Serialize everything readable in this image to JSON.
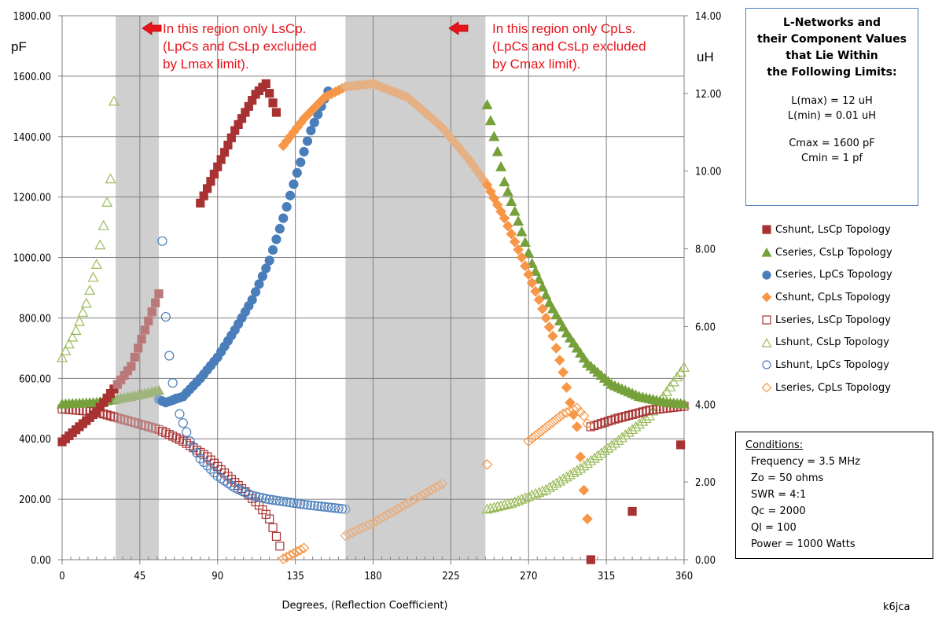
{
  "chart_data": {
    "type": "scatter",
    "title": "",
    "xlabel": "Degrees, (Reflection Coefficient)",
    "ylabel": "pF",
    "y2label": "uH",
    "xlim": [
      0,
      360
    ],
    "ylim": [
      0,
      1800
    ],
    "y2lim": [
      0,
      14
    ],
    "grid": true,
    "x_ticks": [
      0,
      45,
      90,
      135,
      180,
      225,
      270,
      315,
      360
    ],
    "y_ticks": [
      "0.00",
      "200.00",
      "400.00",
      "600.00",
      "800.00",
      "1000.00",
      "1200.00",
      "1400.00",
      "1600.00",
      "1800.00"
    ],
    "y2_ticks": [
      "0.00",
      "2.00",
      "4.00",
      "6.00",
      "8.00",
      "10.00",
      "12.00",
      "14.00"
    ],
    "shaded_regions": [
      {
        "x_from": 31,
        "x_to": 56,
        "label": "only LsCp"
      },
      {
        "x_from": 164,
        "x_to": 245,
        "label": "only CpLs"
      }
    ],
    "annotations": [
      {
        "id": "a1",
        "lines": [
          "In this region only LsCp.",
          "(LpCs and CsLp excluded",
          "by Lmax limit)."
        ]
      },
      {
        "id": "a2",
        "lines": [
          "In this region only CpLs.",
          "(LpCs and CsLp excluded",
          "by Cmax limit)."
        ]
      }
    ],
    "legend_position": "right",
    "series": [
      {
        "name": "Cshunt, LsCp Topology",
        "axis": "left",
        "marker": "square-filled",
        "color": "#a83232",
        "segments": [
          {
            "x_from": 0,
            "x_to": 120,
            "step": 2,
            "curve": "cshunt_lscp_a"
          },
          {
            "x_from": 122,
            "x_to": 122,
            "step": 2,
            "points": [
              [
                122,
                1570
              ]
            ]
          },
          {
            "x_from": 124,
            "x_to": 124,
            "step": 2,
            "points": [
              [
                124,
                1480
              ]
            ]
          },
          {
            "x_from": 306,
            "x_to": 360,
            "step": 2,
            "curve": "cshunt_lscp_b"
          }
        ],
        "key_points": [
          [
            0,
            390
          ],
          [
            20,
            490
          ],
          [
            40,
            640
          ],
          [
            56,
            880
          ],
          [
            80,
            1180
          ],
          [
            100,
            1420
          ],
          [
            112,
            1540
          ],
          [
            118,
            1575
          ],
          [
            124,
            1480
          ],
          [
            306,
            0
          ],
          [
            330,
            160
          ],
          [
            358,
            380
          ]
        ]
      },
      {
        "name": "Cseries, CsLp Topology",
        "axis": "left",
        "marker": "triangle-filled",
        "color": "#76a03a",
        "key_points": [
          [
            0,
            515
          ],
          [
            20,
            520
          ],
          [
            40,
            540
          ],
          [
            56,
            560
          ],
          [
            246,
            1505
          ],
          [
            250,
            1400
          ],
          [
            256,
            1250
          ],
          [
            264,
            1120
          ],
          [
            272,
            980
          ],
          [
            282,
            850
          ],
          [
            292,
            750
          ],
          [
            304,
            650
          ],
          [
            318,
            580
          ],
          [
            334,
            540
          ],
          [
            350,
            520
          ],
          [
            360,
            515
          ]
        ]
      },
      {
        "name": "Cseries, LpCs Topology",
        "axis": "left",
        "marker": "circle-filled",
        "color": "#4a7ebb",
        "key_points": [
          [
            56,
            530
          ],
          [
            60,
            520
          ],
          [
            70,
            540
          ],
          [
            80,
            600
          ],
          [
            90,
            670
          ],
          [
            100,
            760
          ],
          [
            110,
            860
          ],
          [
            120,
            990
          ],
          [
            128,
            1130
          ],
          [
            136,
            1280
          ],
          [
            144,
            1420
          ],
          [
            150,
            1500
          ],
          [
            154,
            1550
          ]
        ]
      },
      {
        "name": "Cshunt, CpLs Topology",
        "axis": "left",
        "marker": "diamond-filled",
        "color": "#f79646",
        "key_points": [
          [
            128,
            1370
          ],
          [
            140,
            1460
          ],
          [
            152,
            1530
          ],
          [
            164,
            1565
          ],
          [
            180,
            1575
          ],
          [
            200,
            1530
          ],
          [
            220,
            1430
          ],
          [
            236,
            1320
          ],
          [
            246,
            1240
          ],
          [
            256,
            1130
          ],
          [
            266,
            1000
          ],
          [
            276,
            860
          ],
          [
            284,
            740
          ],
          [
            290,
            620
          ],
          [
            294,
            520
          ],
          [
            298,
            440
          ],
          [
            300,
            340
          ],
          [
            302,
            230
          ],
          [
            304,
            135
          ]
        ]
      },
      {
        "name": "Lseries, LsCp Topology",
        "axis": "right",
        "marker": "square-open",
        "color": "#a83232",
        "key_points": [
          [
            0,
            3.88
          ],
          [
            20,
            3.8
          ],
          [
            40,
            3.55
          ],
          [
            56,
            3.35
          ],
          [
            70,
            3.05
          ],
          [
            84,
            2.65
          ],
          [
            96,
            2.15
          ],
          [
            106,
            1.75
          ],
          [
            114,
            1.4
          ],
          [
            120,
            1.05
          ],
          [
            124,
            0.6
          ],
          [
            126,
            0.35
          ],
          [
            306,
            3.42
          ],
          [
            320,
            3.62
          ],
          [
            340,
            3.85
          ],
          [
            360,
            3.95
          ]
        ]
      },
      {
        "name": "Lshunt, CsLp Topology",
        "axis": "right",
        "marker": "triangle-open",
        "color": "#9bbb59",
        "key_points": [
          [
            0,
            5.2
          ],
          [
            8,
            5.9
          ],
          [
            14,
            6.6
          ],
          [
            20,
            7.6
          ],
          [
            24,
            8.6
          ],
          [
            28,
            9.8
          ],
          [
            30,
            11.8
          ],
          [
            246,
            1.3
          ],
          [
            260,
            1.45
          ],
          [
            280,
            1.8
          ],
          [
            300,
            2.35
          ],
          [
            320,
            3.0
          ],
          [
            340,
            3.7
          ],
          [
            360,
            4.95
          ]
        ]
      },
      {
        "name": "Lshunt, LpCs Topology",
        "axis": "right",
        "marker": "circle-open",
        "color": "#4a7ebb",
        "key_points": [
          [
            58,
            8.2
          ],
          [
            60,
            6.25
          ],
          [
            62,
            5.25
          ],
          [
            64,
            4.55
          ],
          [
            68,
            3.75
          ],
          [
            74,
            3.05
          ],
          [
            80,
            2.6
          ],
          [
            90,
            2.15
          ],
          [
            100,
            1.85
          ],
          [
            110,
            1.65
          ],
          [
            120,
            1.55
          ],
          [
            140,
            1.42
          ],
          [
            160,
            1.32
          ],
          [
            164,
            1.3
          ]
        ]
      },
      {
        "name": "Lseries, CpLs Topology",
        "axis": "right",
        "marker": "diamond-open",
        "color": "#f79646",
        "key_points": [
          [
            128,
            0.02
          ],
          [
            140,
            0.3
          ],
          [
            164,
            0.62
          ],
          [
            180,
            0.95
          ],
          [
            200,
            1.45
          ],
          [
            220,
            1.95
          ],
          [
            246,
            2.45
          ],
          [
            270,
            3.05
          ],
          [
            290,
            3.75
          ],
          [
            298,
            3.9
          ],
          [
            302,
            3.7
          ],
          [
            304,
            3.5
          ]
        ]
      }
    ]
  },
  "limits_box": {
    "title_lines": [
      "L-Networks and",
      "their Component Values",
      "that Lie Within",
      "the Following Limits:"
    ],
    "lines": [
      "L(max) = 12 uH",
      "L(min) = 0.01 uH",
      "",
      "Cmax = 1600 pF",
      "Cmin = 1 pf"
    ]
  },
  "conditions": {
    "title": "Conditions:",
    "lines": [
      "Frequency = 3.5 MHz",
      "Zo = 50 ohms",
      "SWR = 4:1",
      "Qc = 2000",
      "Ql =  100",
      "Power = 1000 Watts"
    ]
  },
  "credit": "k6jca"
}
